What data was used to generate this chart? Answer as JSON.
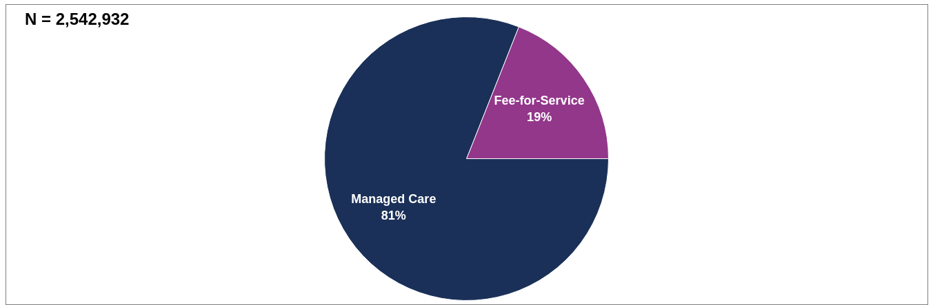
{
  "chart_data": {
    "type": "pie",
    "title": "N = 2,542,932",
    "categories": [
      "Fee-for-Service",
      "Managed Care"
    ],
    "values": [
      19,
      81
    ],
    "colors": [
      "#93378b",
      "#1a3058"
    ],
    "value_labels": [
      "19%",
      "81%"
    ],
    "legend": false
  }
}
